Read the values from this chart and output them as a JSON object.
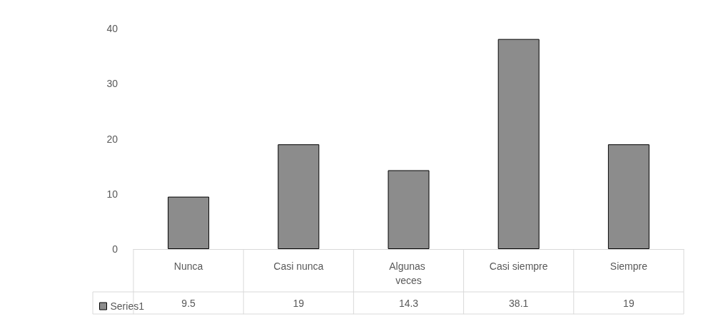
{
  "chart_data": {
    "type": "bar",
    "categories": [
      "Nunca",
      "Casi nunca",
      "Algunas veces",
      "Casi siempre",
      "Siempre"
    ],
    "series": [
      {
        "name": "Series1",
        "color": "#8c8c8c",
        "values": [
          9.5,
          19,
          14.3,
          38.1,
          19
        ]
      }
    ],
    "ylim": [
      0,
      40
    ],
    "yticks": [
      0,
      10,
      20,
      30,
      40
    ],
    "grid": false,
    "legend": "bottom left",
    "data_labels": true
  }
}
